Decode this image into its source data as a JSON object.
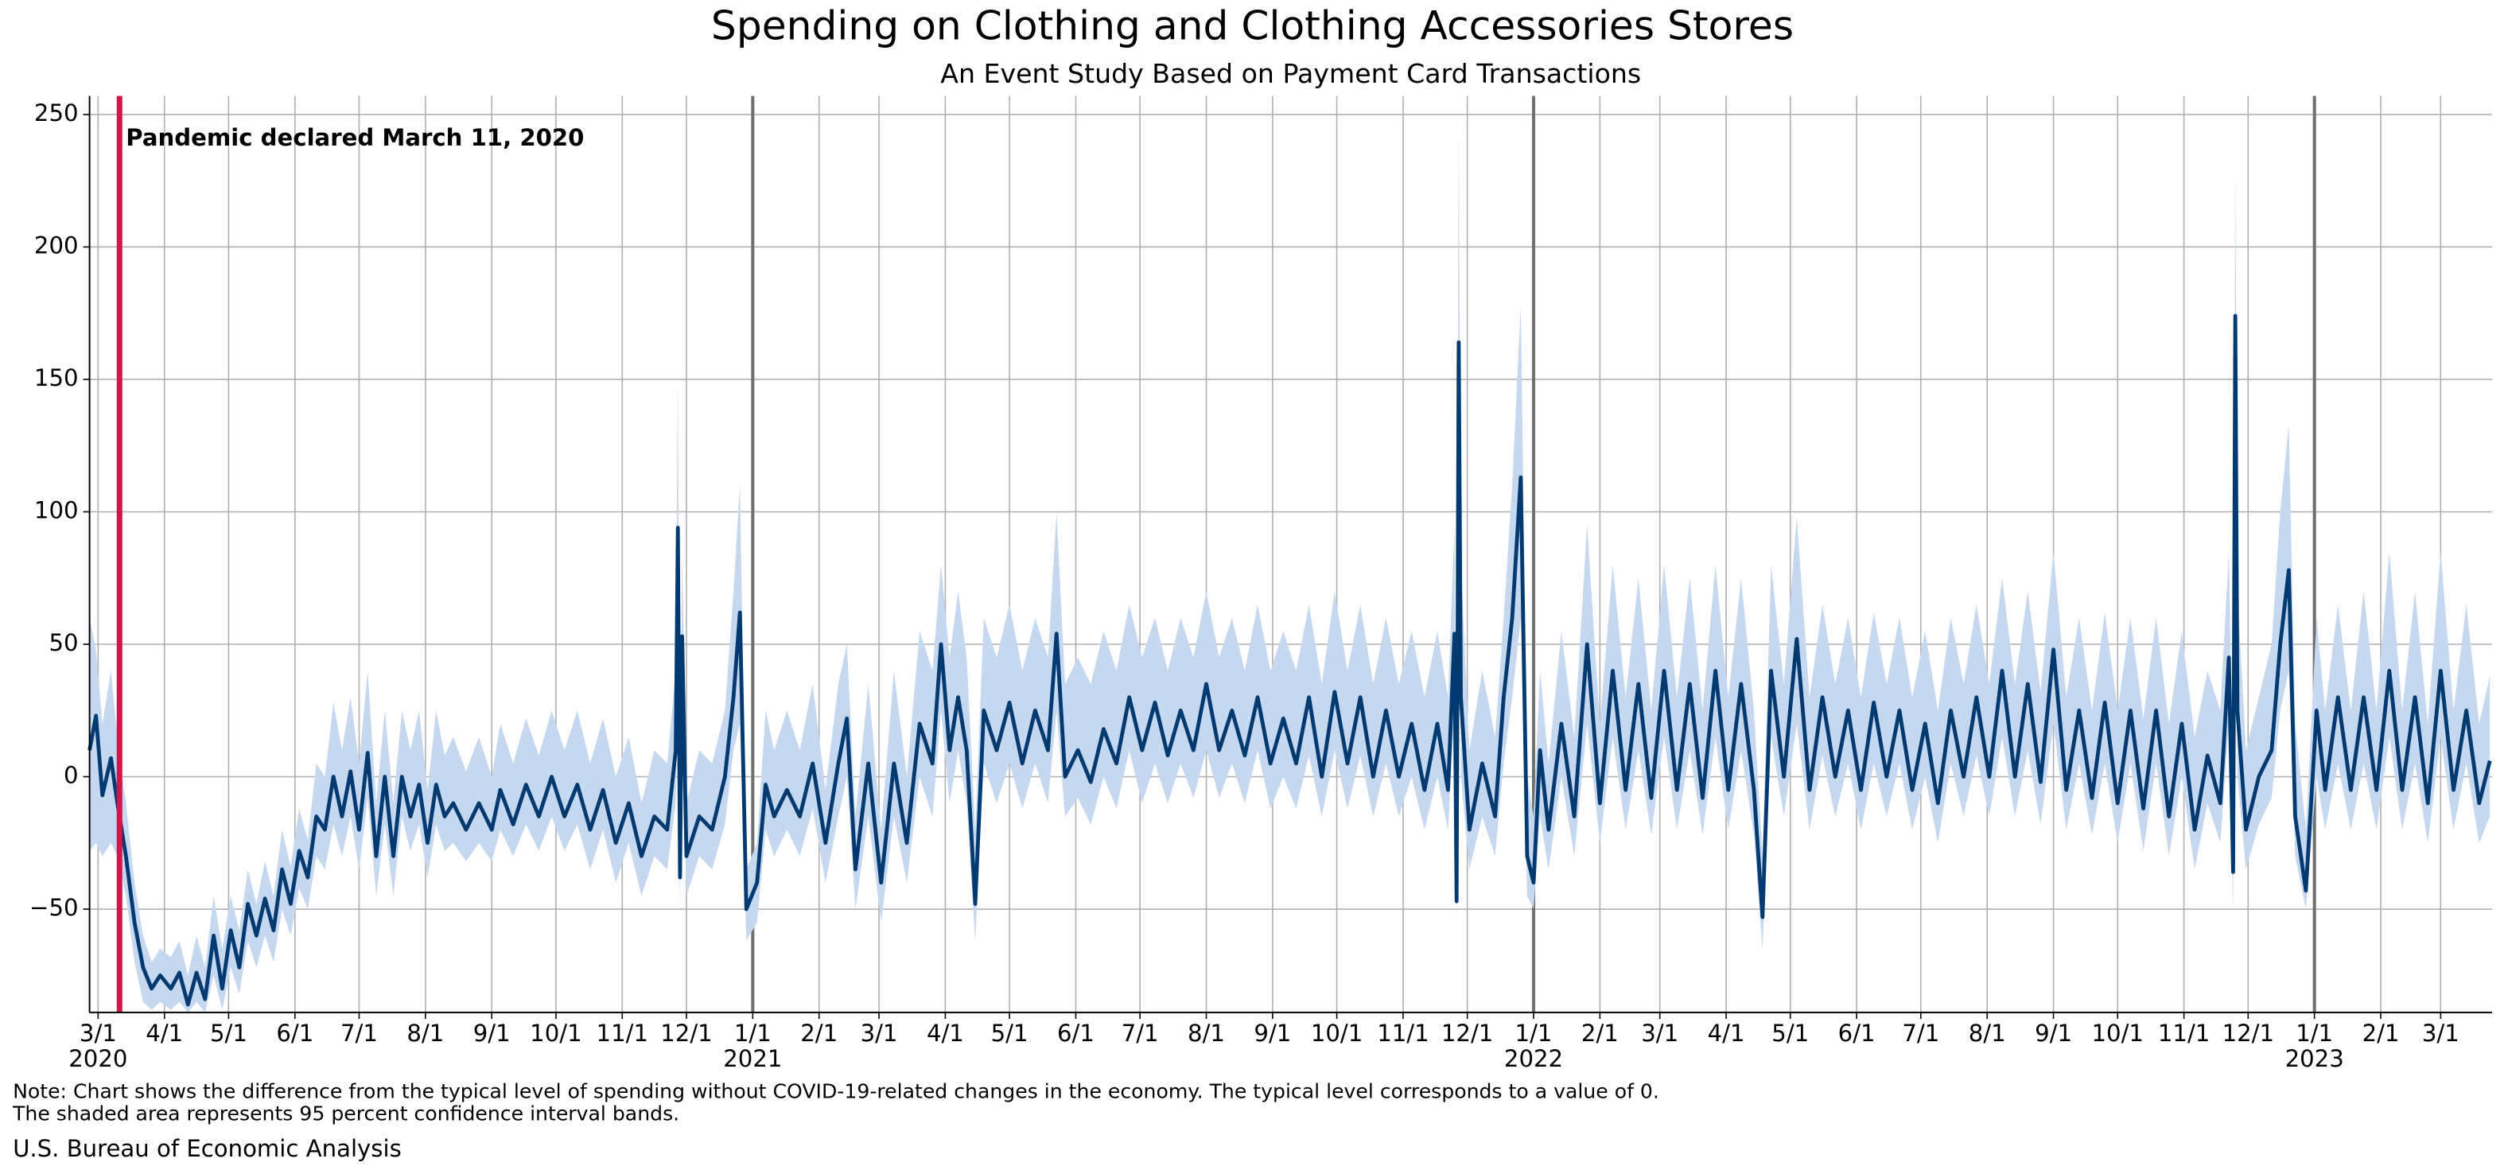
{
  "chart_data": {
    "type": "line",
    "title": "Spending on Clothing and Clothing Accessories Stores",
    "subtitle": "An Event Study Based on Payment Card Transactions",
    "notes": [
      "Note: Chart shows the difference from the typical level of spending without COVID-19-related changes in the economy. The typical level corresponds to a value of 0.",
      "The shaded area represents 95 percent confidence interval bands."
    ],
    "source": "U.S. Bureau of Economic Analysis",
    "title_color": "#0a74c2",
    "line_color": "#003a70",
    "band_color": "#c5d8ef",
    "grid": true,
    "event": {
      "date": "2020-03-11",
      "label": "Pandemic declared March 11, 2020",
      "color": "#d0164b"
    },
    "year_lines": [
      "2021-01-01",
      "2022-01-01",
      "2023-01-01"
    ],
    "xlim": [
      "2020-02-26",
      "2023-03-25"
    ],
    "ylim": [
      -89,
      257
    ],
    "yticks": [
      {
        "value": -50,
        "label": "−50"
      },
      0,
      50,
      100,
      150,
      200,
      250
    ],
    "xticks": [
      {
        "value": "2020-03-01",
        "label": "3/1"
      },
      {
        "value": "2020-04-01",
        "label": "4/1"
      },
      {
        "value": "2020-05-01",
        "label": "5/1"
      },
      {
        "value": "2020-06-01",
        "label": "6/1"
      },
      {
        "value": "2020-07-01",
        "label": "7/1"
      },
      {
        "value": "2020-08-01",
        "label": "8/1"
      },
      {
        "value": "2020-09-01",
        "label": "9/1"
      },
      {
        "value": "2020-10-01",
        "label": "10/1"
      },
      {
        "value": "2020-11-01",
        "label": "11/1"
      },
      {
        "value": "2020-12-01",
        "label": "12/1"
      },
      {
        "value": "2021-01-01",
        "label": "1/1"
      },
      {
        "value": "2021-02-01",
        "label": "2/1"
      },
      {
        "value": "2021-03-01",
        "label": "3/1"
      },
      {
        "value": "2021-04-01",
        "label": "4/1"
      },
      {
        "value": "2021-05-01",
        "label": "5/1"
      },
      {
        "value": "2021-06-01",
        "label": "6/1"
      },
      {
        "value": "2021-07-01",
        "label": "7/1"
      },
      {
        "value": "2021-08-01",
        "label": "8/1"
      },
      {
        "value": "2021-09-01",
        "label": "9/1"
      },
      {
        "value": "2021-10-01",
        "label": "10/1"
      },
      {
        "value": "2021-11-01",
        "label": "11/1"
      },
      {
        "value": "2021-12-01",
        "label": "12/1"
      },
      {
        "value": "2022-01-01",
        "label": "1/1"
      },
      {
        "value": "2022-02-01",
        "label": "2/1"
      },
      {
        "value": "2022-03-01",
        "label": "3/1"
      },
      {
        "value": "2022-04-01",
        "label": "4/1"
      },
      {
        "value": "2022-05-01",
        "label": "5/1"
      },
      {
        "value": "2022-06-01",
        "label": "6/1"
      },
      {
        "value": "2022-07-01",
        "label": "7/1"
      },
      {
        "value": "2022-08-01",
        "label": "8/1"
      },
      {
        "value": "2022-09-01",
        "label": "9/1"
      },
      {
        "value": "2022-10-01",
        "label": "10/1"
      },
      {
        "value": "2022-11-01",
        "label": "11/1"
      },
      {
        "value": "2022-12-01",
        "label": "12/1"
      },
      {
        "value": "2023-01-01",
        "label": "1/1"
      },
      {
        "value": "2023-02-01",
        "label": "2/1"
      },
      {
        "value": "2023-03-01",
        "label": "3/1"
      }
    ],
    "year_ticks": [
      {
        "value": "2020-03-01",
        "label": "2020"
      },
      {
        "value": "2021-01-01",
        "label": "2021"
      },
      {
        "value": "2022-01-01",
        "label": "2022"
      },
      {
        "value": "2023-01-01",
        "label": "2023"
      }
    ],
    "x": [
      "2020-02-26",
      "2020-02-29",
      "2020-03-03",
      "2020-03-07",
      "2020-03-10",
      "2020-03-14",
      "2020-03-18",
      "2020-03-22",
      "2020-03-26",
      "2020-03-30",
      "2020-04-04",
      "2020-04-08",
      "2020-04-12",
      "2020-04-16",
      "2020-04-20",
      "2020-04-24",
      "2020-04-28",
      "2020-05-02",
      "2020-05-06",
      "2020-05-10",
      "2020-05-14",
      "2020-05-18",
      "2020-05-22",
      "2020-05-26",
      "2020-05-30",
      "2020-06-03",
      "2020-06-07",
      "2020-06-11",
      "2020-06-15",
      "2020-06-19",
      "2020-06-23",
      "2020-06-27",
      "2020-07-01",
      "2020-07-05",
      "2020-07-09",
      "2020-07-13",
      "2020-07-17",
      "2020-07-21",
      "2020-07-25",
      "2020-07-29",
      "2020-08-02",
      "2020-08-06",
      "2020-08-10",
      "2020-08-14",
      "2020-08-20",
      "2020-08-26",
      "2020-09-01",
      "2020-09-05",
      "2020-09-11",
      "2020-09-17",
      "2020-09-23",
      "2020-09-29",
      "2020-10-05",
      "2020-10-11",
      "2020-10-17",
      "2020-10-23",
      "2020-10-29",
      "2020-11-04",
      "2020-11-10",
      "2020-11-16",
      "2020-11-22",
      "2020-11-26",
      "2020-11-27",
      "2020-11-28",
      "2020-11-29",
      "2020-12-01",
      "2020-12-07",
      "2020-12-13",
      "2020-12-19",
      "2020-12-23",
      "2020-12-26",
      "2020-12-29",
      "2021-01-03",
      "2021-01-07",
      "2021-01-11",
      "2021-01-17",
      "2021-01-23",
      "2021-01-29",
      "2021-02-04",
      "2021-02-10",
      "2021-02-14",
      "2021-02-18",
      "2021-02-24",
      "2021-03-02",
      "2021-03-08",
      "2021-03-14",
      "2021-03-20",
      "2021-03-26",
      "2021-03-30",
      "2021-04-03",
      "2021-04-07",
      "2021-04-11",
      "2021-04-15",
      "2021-04-19",
      "2021-04-25",
      "2021-05-01",
      "2021-05-07",
      "2021-05-13",
      "2021-05-19",
      "2021-05-23",
      "2021-05-27",
      "2021-06-02",
      "2021-06-08",
      "2021-06-14",
      "2021-06-20",
      "2021-06-26",
      "2021-07-02",
      "2021-07-08",
      "2021-07-14",
      "2021-07-20",
      "2021-07-26",
      "2021-08-01",
      "2021-08-07",
      "2021-08-13",
      "2021-08-19",
      "2021-08-25",
      "2021-08-31",
      "2021-09-06",
      "2021-09-12",
      "2021-09-18",
      "2021-09-24",
      "2021-09-30",
      "2021-10-06",
      "2021-10-12",
      "2021-10-18",
      "2021-10-24",
      "2021-10-30",
      "2021-11-05",
      "2021-11-11",
      "2021-11-17",
      "2021-11-22",
      "2021-11-25",
      "2021-11-26",
      "2021-11-27",
      "2021-11-28",
      "2021-12-02",
      "2021-12-08",
      "2021-12-14",
      "2021-12-18",
      "2021-12-22",
      "2021-12-26",
      "2021-12-29",
      "2022-01-01",
      "2022-01-04",
      "2022-01-08",
      "2022-01-14",
      "2022-01-20",
      "2022-01-26",
      "2022-02-01",
      "2022-02-07",
      "2022-02-13",
      "2022-02-19",
      "2022-02-25",
      "2022-03-03",
      "2022-03-09",
      "2022-03-15",
      "2022-03-21",
      "2022-03-27",
      "2022-04-02",
      "2022-04-08",
      "2022-04-14",
      "2022-04-18",
      "2022-04-22",
      "2022-04-28",
      "2022-05-04",
      "2022-05-10",
      "2022-05-16",
      "2022-05-22",
      "2022-05-28",
      "2022-06-03",
      "2022-06-09",
      "2022-06-15",
      "2022-06-21",
      "2022-06-27",
      "2022-07-03",
      "2022-07-09",
      "2022-07-15",
      "2022-07-21",
      "2022-07-27",
      "2022-08-02",
      "2022-08-08",
      "2022-08-14",
      "2022-08-20",
      "2022-08-26",
      "2022-09-01",
      "2022-09-07",
      "2022-09-13",
      "2022-09-19",
      "2022-09-25",
      "2022-10-01",
      "2022-10-07",
      "2022-10-13",
      "2022-10-19",
      "2022-10-25",
      "2022-10-31",
      "2022-11-06",
      "2022-11-12",
      "2022-11-18",
      "2022-11-22",
      "2022-11-24",
      "2022-11-25",
      "2022-11-26",
      "2022-11-30",
      "2022-12-06",
      "2022-12-12",
      "2022-12-16",
      "2022-12-20",
      "2022-12-23",
      "2022-12-28",
      "2023-01-02",
      "2023-01-06",
      "2023-01-12",
      "2023-01-18",
      "2023-01-24",
      "2023-01-30",
      "2023-02-05",
      "2023-02-11",
      "2023-02-17",
      "2023-02-23",
      "2023-03-01",
      "2023-03-07",
      "2023-03-13",
      "2023-03-19",
      "2023-03-24"
    ],
    "values": [
      10,
      23,
      -7,
      7,
      -10,
      -30,
      -55,
      -72,
      -80,
      -75,
      -80,
      -74,
      -86,
      -74,
      -84,
      -60,
      -80,
      -58,
      -72,
      -48,
      -60,
      -46,
      -58,
      -35,
      -48,
      -28,
      -38,
      -15,
      -20,
      0,
      -15,
      2,
      -20,
      9,
      -30,
      0,
      -30,
      0,
      -15,
      -3,
      -25,
      -3,
      -15,
      -10,
      -20,
      -10,
      -20,
      -5,
      -18,
      -3,
      -15,
      0,
      -15,
      -3,
      -20,
      -5,
      -25,
      -10,
      -30,
      -15,
      -20,
      10,
      94,
      -38,
      53,
      -30,
      -15,
      -20,
      0,
      30,
      62,
      -50,
      -40,
      -3,
      -15,
      -5,
      -15,
      5,
      -25,
      5,
      22,
      -35,
      5,
      -40,
      5,
      -25,
      20,
      5,
      50,
      10,
      30,
      10,
      -48,
      25,
      10,
      28,
      5,
      25,
      10,
      54,
      0,
      10,
      -2,
      18,
      5,
      30,
      10,
      28,
      8,
      25,
      10,
      35,
      10,
      25,
      8,
      30,
      5,
      22,
      5,
      30,
      0,
      32,
      5,
      30,
      0,
      25,
      0,
      20,
      -5,
      20,
      -5,
      54,
      -47,
      164,
      30,
      -20,
      5,
      -15,
      30,
      60,
      113,
      -30,
      -40,
      10,
      -20,
      20,
      -15,
      50,
      -10,
      40,
      -5,
      35,
      -8,
      40,
      -5,
      35,
      -8,
      40,
      -5,
      35,
      -5,
      -53,
      40,
      0,
      52,
      -5,
      30,
      0,
      25,
      -5,
      28,
      0,
      25,
      -5,
      20,
      -10,
      25,
      0,
      30,
      0,
      40,
      0,
      35,
      -2,
      48,
      -5,
      25,
      -8,
      28,
      -10,
      25,
      -12,
      25,
      -15,
      20,
      -20,
      8,
      -10,
      45,
      -36,
      174,
      25,
      -20,
      0,
      10,
      50,
      78,
      -15,
      -43,
      25,
      -5,
      30,
      -5,
      30,
      -5,
      40,
      -5,
      30,
      -10,
      40,
      -5,
      25,
      -10,
      6
    ],
    "band_lower": [
      -28,
      -25,
      -30,
      -25,
      -30,
      -45,
      -70,
      -85,
      -88,
      -85,
      -88,
      -85,
      -89,
      -85,
      -89,
      -75,
      -88,
      -72,
      -82,
      -62,
      -72,
      -60,
      -70,
      -50,
      -60,
      -42,
      -50,
      -30,
      -35,
      -18,
      -30,
      -15,
      -35,
      -8,
      -45,
      -18,
      -45,
      -15,
      -28,
      -18,
      -38,
      -18,
      -28,
      -25,
      -32,
      -25,
      -32,
      -20,
      -30,
      -18,
      -28,
      -15,
      -28,
      -18,
      -35,
      -20,
      -40,
      -25,
      -45,
      -30,
      -35,
      -10,
      50,
      -50,
      20,
      -45,
      -30,
      -35,
      -18,
      10,
      20,
      -62,
      -55,
      -20,
      -30,
      -20,
      -30,
      -12,
      -40,
      -15,
      0,
      -50,
      -15,
      -55,
      -15,
      -40,
      0,
      -15,
      25,
      -10,
      10,
      -10,
      -62,
      5,
      -10,
      5,
      -12,
      5,
      -10,
      25,
      -15,
      -8,
      -18,
      0,
      -12,
      10,
      -10,
      5,
      -10,
      5,
      -8,
      10,
      -8,
      5,
      -10,
      10,
      -12,
      0,
      -12,
      8,
      -15,
      10,
      -12,
      8,
      -15,
      5,
      -15,
      0,
      -20,
      0,
      -20,
      25,
      -55,
      110,
      0,
      -35,
      -15,
      -30,
      5,
      30,
      60,
      -45,
      -50,
      -15,
      -35,
      0,
      -30,
      20,
      -25,
      15,
      -20,
      10,
      -22,
      15,
      -20,
      10,
      -22,
      15,
      -20,
      10,
      -22,
      -65,
      15,
      -15,
      20,
      -20,
      8,
      -15,
      5,
      -20,
      5,
      -15,
      5,
      -20,
      0,
      -25,
      5,
      -15,
      8,
      -15,
      15,
      -15,
      10,
      -18,
      20,
      -20,
      5,
      -22,
      5,
      -25,
      5,
      -28,
      5,
      -30,
      0,
      -35,
      -10,
      -25,
      20,
      -50,
      110,
      0,
      -35,
      -18,
      -8,
      25,
      40,
      -30,
      -50,
      0,
      -20,
      5,
      -20,
      5,
      -20,
      15,
      -20,
      5,
      -25,
      15,
      -20,
      5,
      -25,
      -15
    ],
    "band_upper": [
      60,
      48,
      20,
      40,
      15,
      -10,
      -40,
      -60,
      -70,
      -65,
      -68,
      -62,
      -75,
      -60,
      -72,
      -45,
      -65,
      -45,
      -58,
      -35,
      -48,
      -32,
      -45,
      -20,
      -34,
      -12,
      -24,
      5,
      0,
      28,
      10,
      30,
      5,
      40,
      -10,
      25,
      -10,
      25,
      10,
      25,
      -5,
      25,
      8,
      15,
      2,
      15,
      0,
      20,
      5,
      22,
      8,
      25,
      10,
      25,
      5,
      22,
      0,
      15,
      -10,
      10,
      5,
      40,
      150,
      -20,
      85,
      -10,
      10,
      5,
      25,
      70,
      110,
      -35,
      -25,
      25,
      10,
      25,
      10,
      35,
      -5,
      35,
      50,
      -15,
      35,
      -20,
      40,
      0,
      55,
      40,
      80,
      45,
      70,
      45,
      -20,
      60,
      45,
      65,
      40,
      60,
      45,
      100,
      35,
      45,
      35,
      55,
      40,
      65,
      45,
      60,
      40,
      60,
      45,
      70,
      45,
      60,
      40,
      65,
      40,
      55,
      40,
      65,
      35,
      70,
      40,
      65,
      35,
      60,
      35,
      55,
      30,
      55,
      30,
      95,
      -20,
      245,
      80,
      10,
      40,
      15,
      60,
      110,
      178,
      0,
      -15,
      40,
      5,
      55,
      15,
      95,
      20,
      80,
      30,
      75,
      25,
      80,
      30,
      75,
      25,
      80,
      30,
      75,
      25,
      -30,
      80,
      35,
      98,
      30,
      65,
      35,
      60,
      30,
      62,
      35,
      60,
      30,
      55,
      25,
      60,
      35,
      65,
      35,
      75,
      35,
      70,
      32,
      85,
      30,
      60,
      25,
      62,
      25,
      60,
      22,
      60,
      20,
      55,
      15,
      40,
      25,
      85,
      -10,
      230,
      70,
      10,
      30,
      50,
      100,
      133,
      20,
      -20,
      60,
      25,
      65,
      25,
      70,
      25,
      85,
      25,
      70,
      20,
      85,
      25,
      65,
      20,
      38
    ]
  }
}
